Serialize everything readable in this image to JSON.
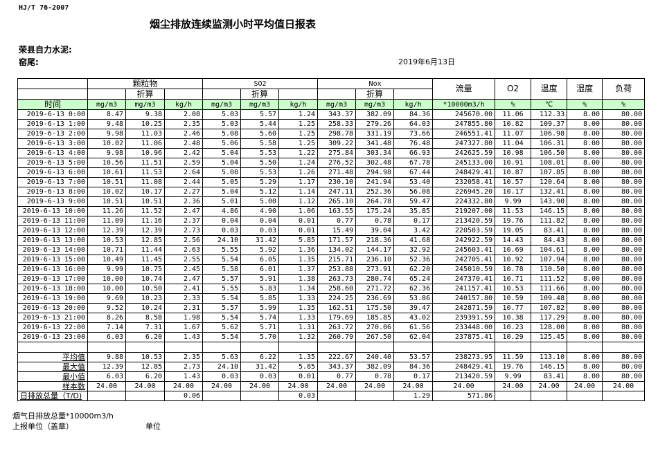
{
  "header": {
    "standard": "HJ/T  76-2007",
    "title": "烟尘排放连续监测小时平均值日报表",
    "company": "荣县自力水泥:",
    "kiln": "窑尾:",
    "date": "2019年6月13日"
  },
  "table": {
    "groups": {
      "particulate": "颗粒物",
      "so2": "SO2",
      "nox": "Nox",
      "flow": "流量",
      "o2": "O2",
      "temp": "温度",
      "humidity": "湿度",
      "load": "负荷"
    },
    "converted": "折算",
    "time_label": "时间",
    "units": [
      "mg/m3",
      "mg/m3",
      "kg/h",
      "mg/m3",
      "mg/m3",
      "kg/h",
      "mg/m3",
      "mg/m3",
      "kg/h",
      "*10000m3/h",
      "%",
      "℃",
      "%",
      "%"
    ],
    "rows": [
      [
        "2019-6-13 0:00",
        "8.47",
        "9.38",
        "2.08",
        "5.03",
        "5.57",
        "1.24",
        "343.37",
        "382.09",
        "84.36",
        "245670.00",
        "11.06",
        "112.33",
        "8.00",
        "80.00"
      ],
      [
        "2019-6-13 1:00",
        "9.48",
        "10.25",
        "2.35",
        "5.03",
        "5.44",
        "1.25",
        "258.33",
        "279.26",
        "64.03",
        "247855.80",
        "10.82",
        "109.37",
        "8.00",
        "80.00"
      ],
      [
        "2019-6-13 2:00",
        "9.98",
        "11.03",
        "2.46",
        "5.08",
        "5.60",
        "1.25",
        "298.78",
        "331.19",
        "73.66",
        "246551.41",
        "11.07",
        "106.98",
        "8.00",
        "80.00"
      ],
      [
        "2019-6-13 3:00",
        "10.02",
        "11.06",
        "2.48",
        "5.06",
        "5.58",
        "1.25",
        "309.22",
        "341.48",
        "76.48",
        "247327.80",
        "11.04",
        "106.31",
        "8.00",
        "80.00"
      ],
      [
        "2019-6-13 4:00",
        "9.98",
        "10.96",
        "2.42",
        "5.04",
        "5.53",
        "1.22",
        "275.84",
        "303.34",
        "66.93",
        "242625.59",
        "10.98",
        "106.50",
        "8.00",
        "80.00"
      ],
      [
        "2019-6-13 5:00",
        "10.56",
        "11.51",
        "2.59",
        "5.04",
        "5.50",
        "1.24",
        "276.52",
        "302.48",
        "67.78",
        "245133.00",
        "10.91",
        "108.01",
        "8.00",
        "80.00"
      ],
      [
        "2019-6-13 6:00",
        "10.61",
        "11.53",
        "2.64",
        "5.08",
        "5.53",
        "1.26",
        "271.48",
        "294.98",
        "67.44",
        "248429.41",
        "10.87",
        "107.85",
        "8.00",
        "80.00"
      ],
      [
        "2019-6-13 7:00",
        "10.51",
        "11.08",
        "2.44",
        "5.05",
        "5.29",
        "1.17",
        "230.10",
        "241.94",
        "53.40",
        "232058.41",
        "10.57",
        "120.64",
        "8.00",
        "80.00"
      ],
      [
        "2019-6-13 8:00",
        "10.02",
        "10.17",
        "2.27",
        "5.04",
        "5.12",
        "1.14",
        "247.11",
        "252.36",
        "56.08",
        "226945.20",
        "10.17",
        "132.41",
        "8.00",
        "80.00"
      ],
      [
        "2019-6-13 9:00",
        "10.51",
        "10.51",
        "2.36",
        "5.01",
        "5.00",
        "1.12",
        "265.10",
        "264.78",
        "59.47",
        "224332.80",
        "9.99",
        "143.90",
        "8.00",
        "80.00"
      ],
      [
        "2019-6-13 10:00",
        "11.26",
        "11.52",
        "2.47",
        "4.86",
        "4.90",
        "1.06",
        "163.55",
        "175.24",
        "35.85",
        "219207.00",
        "11.53",
        "146.15",
        "8.00",
        "80.00"
      ],
      [
        "2019-6-13 11:00",
        "11.09",
        "11.16",
        "2.37",
        "0.04",
        "0.04",
        "0.01",
        "0.77",
        "0.78",
        "0.17",
        "213420.59",
        "19.76",
        "111.82",
        "8.00",
        "80.00"
      ],
      [
        "2019-6-13 12:00",
        "12.39",
        "12.39",
        "2.73",
        "0.03",
        "0.03",
        "0.01",
        "15.49",
        "39.04",
        "3.42",
        "220503.59",
        "19.05",
        "83.41",
        "8.00",
        "80.00"
      ],
      [
        "2019-6-13 13:00",
        "10.53",
        "12.85",
        "2.56",
        "24.10",
        "31.42",
        "5.85",
        "171.57",
        "218.36",
        "41.68",
        "242922.59",
        "14.43",
        "84.43",
        "8.00",
        "80.00"
      ],
      [
        "2019-6-13 14:00",
        "10.71",
        "11.44",
        "2.63",
        "5.55",
        "5.92",
        "1.36",
        "134.02",
        "144.17",
        "32.92",
        "245603.41",
        "10.69",
        "104.61",
        "8.00",
        "80.00"
      ],
      [
        "2019-6-13 15:00",
        "10.49",
        "11.45",
        "2.55",
        "5.54",
        "6.05",
        "1.35",
        "215.71",
        "236.10",
        "52.36",
        "242705.41",
        "10.92",
        "107.94",
        "8.00",
        "80.00"
      ],
      [
        "2019-6-13 16:00",
        "9.99",
        "10.75",
        "2.45",
        "5.58",
        "6.01",
        "1.37",
        "253.88",
        "273.91",
        "62.20",
        "245010.59",
        "10.78",
        "110.50",
        "8.00",
        "80.00"
      ],
      [
        "2019-6-13 17:00",
        "10.00",
        "10.74",
        "2.47",
        "5.57",
        "5.91",
        "1.38",
        "263.73",
        "280.74",
        "65.24",
        "247370.41",
        "10.71",
        "111.52",
        "8.00",
        "80.00"
      ],
      [
        "2019-6-13 18:00",
        "10.00",
        "10.50",
        "2.41",
        "5.55",
        "5.83",
        "1.34",
        "258.60",
        "271.72",
        "62.36",
        "241157.41",
        "10.53",
        "111.66",
        "8.00",
        "80.00"
      ],
      [
        "2019-6-13 19:00",
        "9.69",
        "10.23",
        "2.33",
        "5.54",
        "5.85",
        "1.33",
        "224.25",
        "236.69",
        "53.86",
        "240157.80",
        "10.59",
        "109.48",
        "8.00",
        "80.00"
      ],
      [
        "2019-6-13 20:00",
        "9.52",
        "10.24",
        "2.31",
        "5.57",
        "5.99",
        "1.35",
        "162.51",
        "175.50",
        "39.47",
        "242871.59",
        "10.77",
        "107.82",
        "8.00",
        "80.00"
      ],
      [
        "2019-6-13 21:00",
        "8.26",
        "8.58",
        "1.98",
        "5.54",
        "5.74",
        "1.33",
        "179.69",
        "185.85",
        "43.02",
        "239391.59",
        "10.38",
        "117.29",
        "8.00",
        "80.00"
      ],
      [
        "2019-6-13 22:00",
        "7.14",
        "7.31",
        "1.67",
        "5.62",
        "5.71",
        "1.31",
        "263.72",
        "270.06",
        "61.56",
        "233448.00",
        "10.23",
        "128.00",
        "8.00",
        "80.00"
      ],
      [
        "2019-6-13 23:00",
        "6.03",
        "6.20",
        "1.43",
        "5.54",
        "5.70",
        "1.32",
        "260.79",
        "267.50",
        "62.04",
        "237875.41",
        "10.29",
        "125.45",
        "8.00",
        "80.00"
      ]
    ],
    "stats": [
      [
        "平均值",
        "9.88",
        "10.53",
        "2.35",
        "5.63",
        "6.22",
        "1.35",
        "222.67",
        "240.40",
        "53.57",
        "238273.95",
        "11.59",
        "113.10",
        "8.00",
        "80.00"
      ],
      [
        "最大值",
        "12.39",
        "12.85",
        "2.73",
        "24.10",
        "31.42",
        "5.85",
        "343.37",
        "382.09",
        "84.36",
        "248429.41",
        "19.76",
        "146.15",
        "8.00",
        "80.00"
      ],
      [
        "最小值",
        "6.03",
        "6.20",
        "1.43",
        "0.03",
        "0.03",
        "0.01",
        "0.77",
        "0.78",
        "0.17",
        "213420.59",
        "9.99",
        "83.41",
        "8.00",
        "80.00"
      ],
      [
        "样本数",
        "24.00",
        "24.00",
        "24.00",
        "24.00",
        "24.00",
        "24.00",
        "24.00",
        "24.00",
        "24.00",
        "24.00",
        "24.00",
        "24.00",
        "24.00",
        "24.00"
      ]
    ],
    "daily_total": [
      "日排放总量（T/D)",
      "",
      "",
      "0.06",
      "",
      "",
      "0.03",
      "",
      "",
      "1.29",
      "571.86",
      "",
      "",
      "",
      ""
    ]
  },
  "footer": {
    "flue_gas_total": "烟气日排放总量*10000m3/h",
    "reporting_unit": "上报单位（盖章）",
    "unit": "单位"
  },
  "colors": {
    "header_highlight": "#ccffcc"
  }
}
